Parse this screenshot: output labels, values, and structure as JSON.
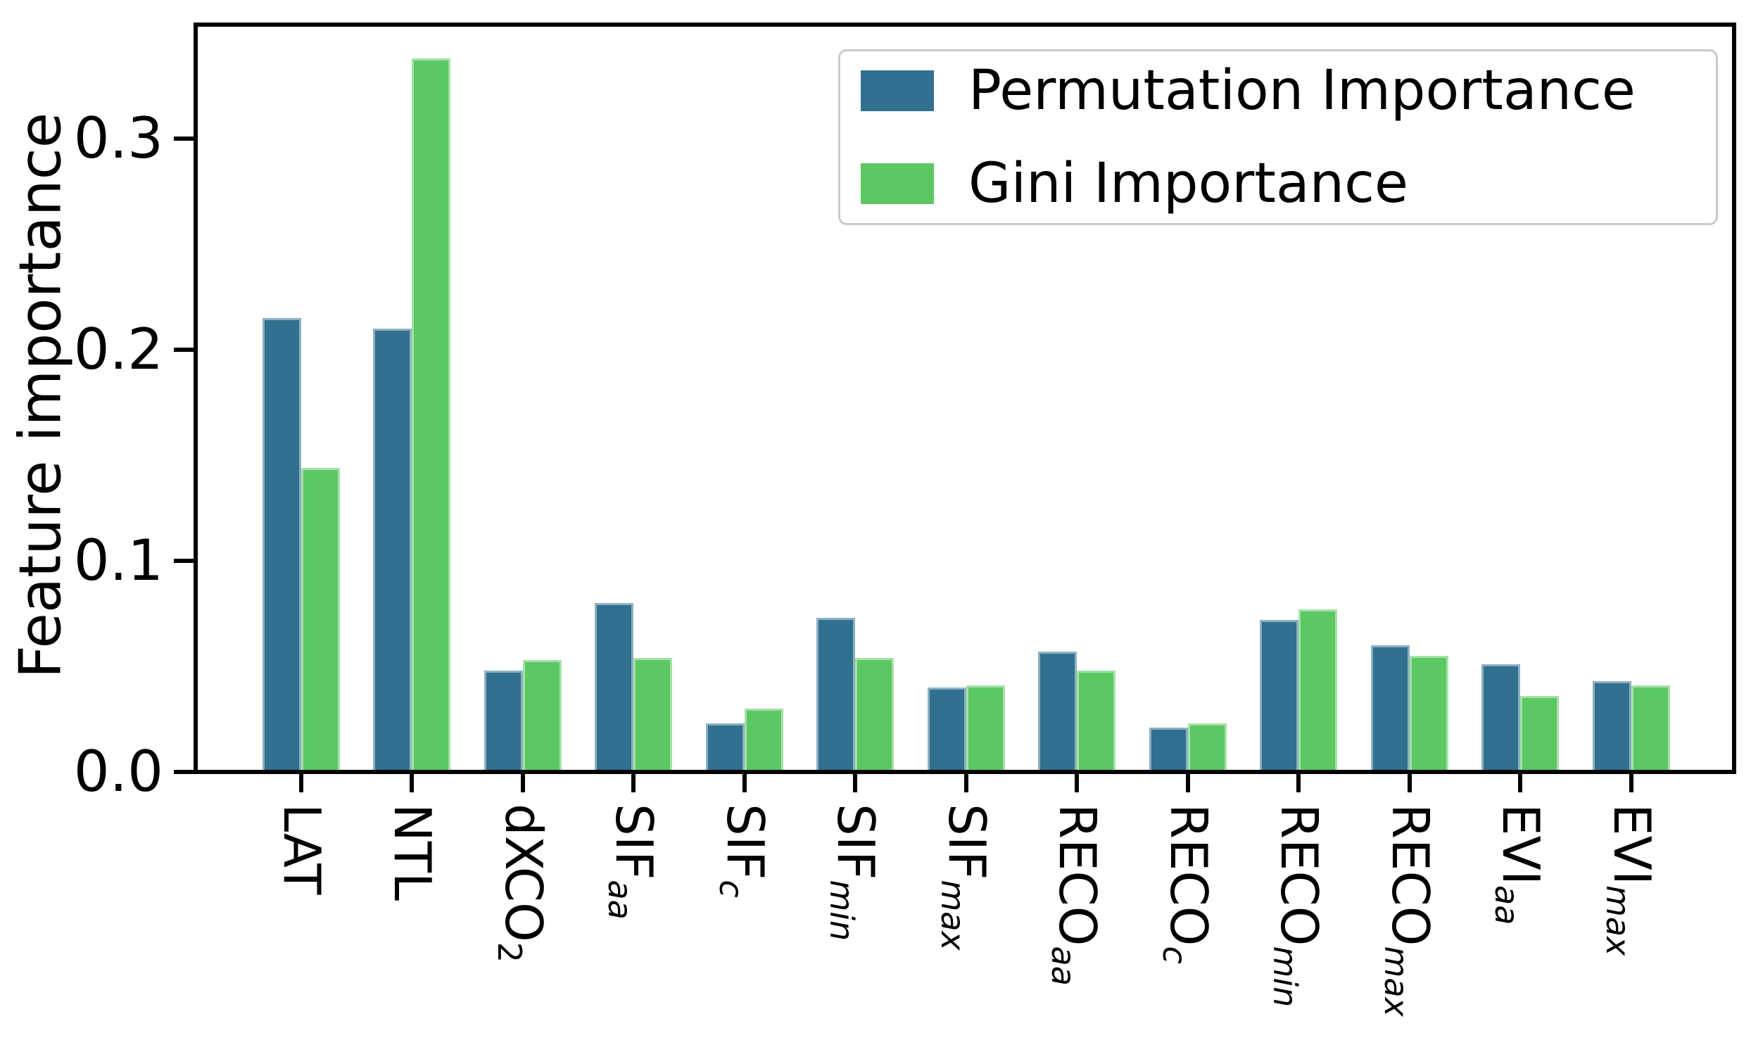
{
  "chart_data": {
    "type": "bar",
    "title": "",
    "xlabel": "",
    "ylabel": "Feature importance",
    "ylim": [
      0,
      0.354
    ],
    "grid": false,
    "legend_position": "upper right",
    "y_ticks": {
      "labels": [
        "0.0",
        "0.1",
        "0.2",
        "0.3"
      ],
      "values": [
        0,
        0.1,
        0.2,
        0.3
      ]
    },
    "categories": [
      {
        "id": "LAT",
        "main": "LAT",
        "sub": "",
        "sub_italic": false
      },
      {
        "id": "NTL",
        "main": "NTL",
        "sub": "",
        "sub_italic": false
      },
      {
        "id": "dXCO2",
        "main": "dXCO",
        "sub": "2",
        "sub_italic": false
      },
      {
        "id": "SIF_aa",
        "main": "SIF",
        "sub": "aa",
        "sub_italic": true
      },
      {
        "id": "SIF_c",
        "main": "SIF",
        "sub": "c",
        "sub_italic": true
      },
      {
        "id": "SIF_min",
        "main": "SIF",
        "sub": "min",
        "sub_italic": true
      },
      {
        "id": "SIF_max",
        "main": "SIF",
        "sub": "max",
        "sub_italic": true
      },
      {
        "id": "RECO_aa",
        "main": "RECO",
        "sub": "aa",
        "sub_italic": true
      },
      {
        "id": "RECO_c",
        "main": "RECO",
        "sub": "c",
        "sub_italic": true
      },
      {
        "id": "RECO_min",
        "main": "RECO",
        "sub": "min",
        "sub_italic": true
      },
      {
        "id": "RECO_max",
        "main": "RECO",
        "sub": "max",
        "sub_italic": true
      },
      {
        "id": "EVI_aa",
        "main": "EVI",
        "sub": "aa",
        "sub_italic": true
      },
      {
        "id": "EVI_max",
        "main": "EVI",
        "sub": "max",
        "sub_italic": true
      }
    ],
    "series": [
      {
        "name": "Permutation Importance",
        "color": "#31708E",
        "values": [
          0.215,
          0.21,
          0.048,
          0.08,
          0.023,
          0.073,
          0.04,
          0.057,
          0.021,
          0.072,
          0.06,
          0.051,
          0.043
        ]
      },
      {
        "name": "Gini Importance",
        "color": "#5CC863",
        "values": [
          0.144,
          0.338,
          0.053,
          0.054,
          0.03,
          0.054,
          0.041,
          0.048,
          0.023,
          0.077,
          0.055,
          0.036,
          0.041
        ]
      }
    ]
  }
}
